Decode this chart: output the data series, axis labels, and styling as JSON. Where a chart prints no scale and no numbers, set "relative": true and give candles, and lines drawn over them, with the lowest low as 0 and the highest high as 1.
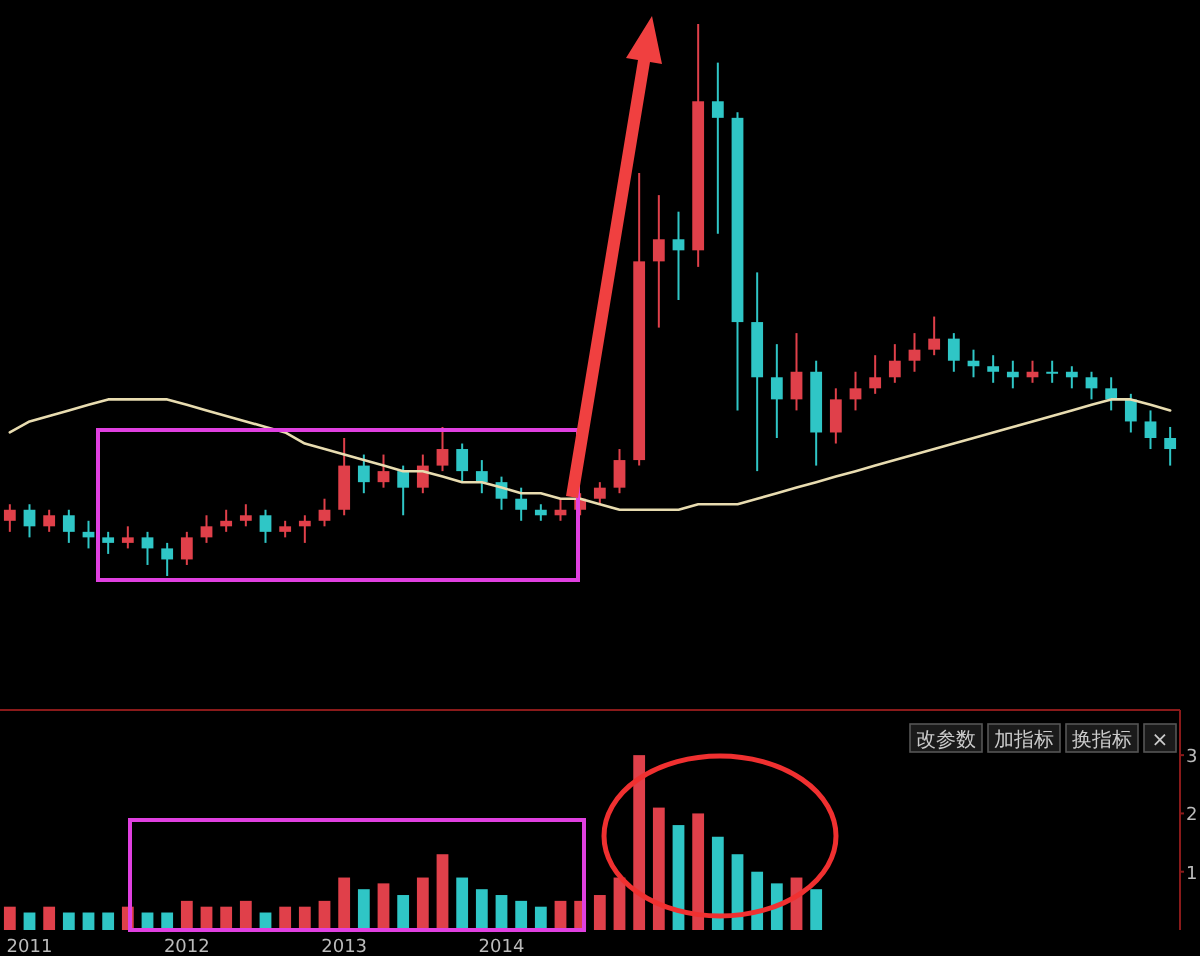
{
  "chart_data": [
    {
      "type": "candlestick",
      "relative": true,
      "categories": [
        null,
        null,
        null,
        null,
        null,
        null,
        null,
        null,
        null,
        null,
        null,
        null,
        null,
        null,
        null,
        null,
        null,
        null,
        null,
        null,
        null,
        null,
        null,
        null,
        null,
        null,
        null,
        null,
        null,
        null,
        null,
        null,
        null,
        null,
        null,
        null,
        null,
        null,
        null,
        null,
        null,
        null,
        null,
        null,
        null,
        null,
        null,
        null,
        null,
        null,
        null,
        null,
        null,
        null,
        null,
        null,
        null,
        null,
        null,
        null
      ],
      "ohlc": [
        [
          0.1,
          0.13,
          0.08,
          0.12
        ],
        [
          0.12,
          0.13,
          0.07,
          0.09
        ],
        [
          0.09,
          0.12,
          0.08,
          0.11
        ],
        [
          0.11,
          0.12,
          0.06,
          0.08
        ],
        [
          0.08,
          0.1,
          0.05,
          0.07
        ],
        [
          0.07,
          0.08,
          0.04,
          0.06
        ],
        [
          0.06,
          0.09,
          0.05,
          0.07
        ],
        [
          0.07,
          0.08,
          0.02,
          0.05
        ],
        [
          0.05,
          0.06,
          0,
          0.03
        ],
        [
          0.03,
          0.08,
          0.02,
          0.07
        ],
        [
          0.07,
          0.11,
          0.06,
          0.09
        ],
        [
          0.09,
          0.12,
          0.08,
          0.1
        ],
        [
          0.1,
          0.13,
          0.09,
          0.11
        ],
        [
          0.11,
          0.12,
          0.06,
          0.08
        ],
        [
          0.08,
          0.1,
          0.07,
          0.09
        ],
        [
          0.09,
          0.11,
          0.06,
          0.1
        ],
        [
          0.1,
          0.14,
          0.09,
          0.12
        ],
        [
          0.12,
          0.25,
          0.11,
          0.2
        ],
        [
          0.2,
          0.22,
          0.15,
          0.17
        ],
        [
          0.17,
          0.22,
          0.16,
          0.19
        ],
        [
          0.19,
          0.2,
          0.11,
          0.16
        ],
        [
          0.16,
          0.22,
          0.15,
          0.2
        ],
        [
          0.2,
          0.27,
          0.19,
          0.23
        ],
        [
          0.23,
          0.24,
          0.17,
          0.19
        ],
        [
          0.19,
          0.21,
          0.15,
          0.17
        ],
        [
          0.17,
          0.18,
          0.12,
          0.14
        ],
        [
          0.14,
          0.16,
          0.1,
          0.12
        ],
        [
          0.12,
          0.13,
          0.1,
          0.11
        ],
        [
          0.11,
          0.14,
          0.1,
          0.12
        ],
        [
          0.12,
          0.15,
          0.11,
          0.14
        ],
        [
          0.14,
          0.17,
          0.13,
          0.16
        ],
        [
          0.16,
          0.23,
          0.15,
          0.21
        ],
        [
          0.21,
          0.73,
          0.2,
          0.57
        ],
        [
          0.57,
          0.69,
          0.45,
          0.61
        ],
        [
          0.61,
          0.66,
          0.5,
          0.59
        ],
        [
          0.59,
          1,
          0.56,
          0.86
        ],
        [
          0.86,
          0.93,
          0.62,
          0.83
        ],
        [
          0.83,
          0.84,
          0.3,
          0.46
        ],
        [
          0.46,
          0.55,
          0.19,
          0.36
        ],
        [
          0.36,
          0.42,
          0.25,
          0.32
        ],
        [
          0.32,
          0.44,
          0.3,
          0.37
        ],
        [
          0.37,
          0.39,
          0.2,
          0.26
        ],
        [
          0.26,
          0.34,
          0.24,
          0.32
        ],
        [
          0.32,
          0.37,
          0.3,
          0.34
        ],
        [
          0.34,
          0.4,
          0.33,
          0.36
        ],
        [
          0.36,
          0.42,
          0.35,
          0.39
        ],
        [
          0.39,
          0.44,
          0.37,
          0.41
        ],
        [
          0.41,
          0.47,
          0.4,
          0.43
        ],
        [
          0.43,
          0.44,
          0.37,
          0.39
        ],
        [
          0.39,
          0.41,
          0.36,
          0.38
        ],
        [
          0.38,
          0.4,
          0.35,
          0.37
        ],
        [
          0.37,
          0.39,
          0.34,
          0.36
        ],
        [
          0.36,
          0.39,
          0.35,
          0.37
        ],
        [
          0.37,
          0.39,
          0.35,
          0.37
        ],
        [
          0.37,
          0.38,
          0.34,
          0.36
        ],
        [
          0.36,
          0.37,
          0.32,
          0.34
        ],
        [
          0.34,
          0.36,
          0.3,
          0.32
        ],
        [
          0.32,
          0.33,
          0.26,
          0.28
        ],
        [
          0.28,
          0.3,
          0.23,
          0.25
        ],
        [
          0.25,
          0.27,
          0.2,
          0.23
        ]
      ],
      "colors": [
        "#e0404a",
        "#2fc6c6",
        "#e0404a",
        "#2fc6c6",
        "#2fc6c6",
        "#2fc6c6",
        "#e0404a",
        "#2fc6c6",
        "#2fc6c6",
        "#e0404a",
        "#e0404a",
        "#e0404a",
        "#e0404a",
        "#2fc6c6",
        "#e0404a",
        "#e0404a",
        "#e0404a",
        "#e0404a",
        "#2fc6c6",
        "#e0404a",
        "#2fc6c6",
        "#e0404a",
        "#e0404a",
        "#2fc6c6",
        "#2fc6c6",
        "#2fc6c6",
        "#2fc6c6",
        "#2fc6c6",
        "#e0404a",
        "#e0404a",
        "#e0404a",
        "#e0404a",
        "#e0404a",
        "#e0404a",
        "#2fc6c6",
        "#e0404a",
        "#2fc6c6",
        "#2fc6c6",
        "#2fc6c6",
        "#2fc6c6",
        "#e0404a",
        "#2fc6c6",
        "#e0404a",
        "#e0404a",
        "#e0404a",
        "#e0404a",
        "#e0404a",
        "#e0404a",
        "#2fc6c6",
        "#2fc6c6",
        "#2fc6c6",
        "#2fc6c6",
        "#e0404a",
        "#2fc6c6",
        "#2fc6c6",
        "#2fc6c6",
        "#2fc6c6",
        "#2fc6c6",
        "#2fc6c6",
        "#2fc6c6"
      ],
      "series": [
        {
          "type": "line",
          "color": "#e8dcb0",
          "values": [
            0.26,
            0.28,
            0.29,
            0.3,
            0.31,
            0.32,
            0.32,
            0.32,
            0.32,
            0.31,
            0.3,
            0.29,
            0.28,
            0.27,
            0.26,
            0.24,
            0.23,
            0.22,
            0.21,
            0.2,
            0.19,
            0.19,
            0.18,
            0.17,
            0.17,
            0.16,
            0.15,
            0.15,
            0.14,
            0.14,
            0.13,
            0.12,
            0.12,
            0.12,
            0.12,
            0.13,
            0.13,
            0.13,
            0.14,
            0.15,
            0.16,
            0.17,
            0.18,
            0.19,
            0.2,
            0.21,
            0.22,
            0.23,
            0.24,
            0.25,
            0.26,
            0.27,
            0.28,
            0.29,
            0.3,
            0.31,
            0.32,
            0.32,
            0.31,
            0.3
          ]
        }
      ]
    },
    {
      "type": "bar",
      "ylim": [
        0,
        3.5
      ],
      "yticks": [
        1,
        2,
        3
      ],
      "categories": [
        null,
        "2011",
        null,
        null,
        null,
        null,
        null,
        null,
        null,
        "2012",
        null,
        null,
        null,
        null,
        null,
        null,
        null,
        "2013",
        null,
        null,
        null,
        null,
        null,
        null,
        null,
        "2014",
        null,
        null,
        null,
        null,
        null,
        null,
        null,
        null,
        null,
        null,
        null,
        null,
        null,
        null,
        null,
        null,
        null,
        null,
        null,
        null,
        null,
        null,
        null,
        null,
        null,
        null,
        null,
        null,
        null,
        null,
        null,
        null,
        null,
        null
      ],
      "values": [
        0.4,
        0.3,
        0.4,
        0.3,
        0.3,
        0.3,
        0.4,
        0.3,
        0.3,
        0.5,
        0.4,
        0.4,
        0.5,
        0.3,
        0.4,
        0.4,
        0.5,
        0.9,
        0.7,
        0.8,
        0.6,
        0.9,
        1.3,
        0.9,
        0.7,
        0.6,
        0.5,
        0.4,
        0.5,
        0.5,
        0.6,
        0.9,
        3.0,
        2.1,
        1.8,
        2.0,
        1.6,
        1.3,
        1.0,
        0.8,
        0.9,
        0.7,
        null,
        null,
        null,
        null,
        null,
        null,
        null,
        null,
        null,
        null,
        null,
        null,
        null,
        null,
        null,
        null,
        null,
        null
      ],
      "colors": [
        "#e0404a",
        "#2fc6c6",
        "#e0404a",
        "#2fc6c6",
        "#2fc6c6",
        "#2fc6c6",
        "#e0404a",
        "#2fc6c6",
        "#2fc6c6",
        "#e0404a",
        "#e0404a",
        "#e0404a",
        "#e0404a",
        "#2fc6c6",
        "#e0404a",
        "#e0404a",
        "#e0404a",
        "#e0404a",
        "#2fc6c6",
        "#e0404a",
        "#2fc6c6",
        "#e0404a",
        "#e0404a",
        "#2fc6c6",
        "#2fc6c6",
        "#2fc6c6",
        "#2fc6c6",
        "#2fc6c6",
        "#e0404a",
        "#e0404a",
        "#e0404a",
        "#e0404a",
        "#e0404a",
        "#e0404a",
        "#2fc6c6",
        "#e0404a",
        "#2fc6c6",
        "#2fc6c6",
        "#2fc6c6",
        "#2fc6c6",
        "#e0404a",
        "#2fc6c6",
        null,
        null,
        null,
        null,
        null,
        null,
        null,
        null,
        null,
        null,
        null,
        null,
        null,
        null,
        null,
        null,
        null,
        null
      ],
      "annotations": [
        "改参数",
        "加指标",
        "换指标",
        "×"
      ]
    }
  ]
}
